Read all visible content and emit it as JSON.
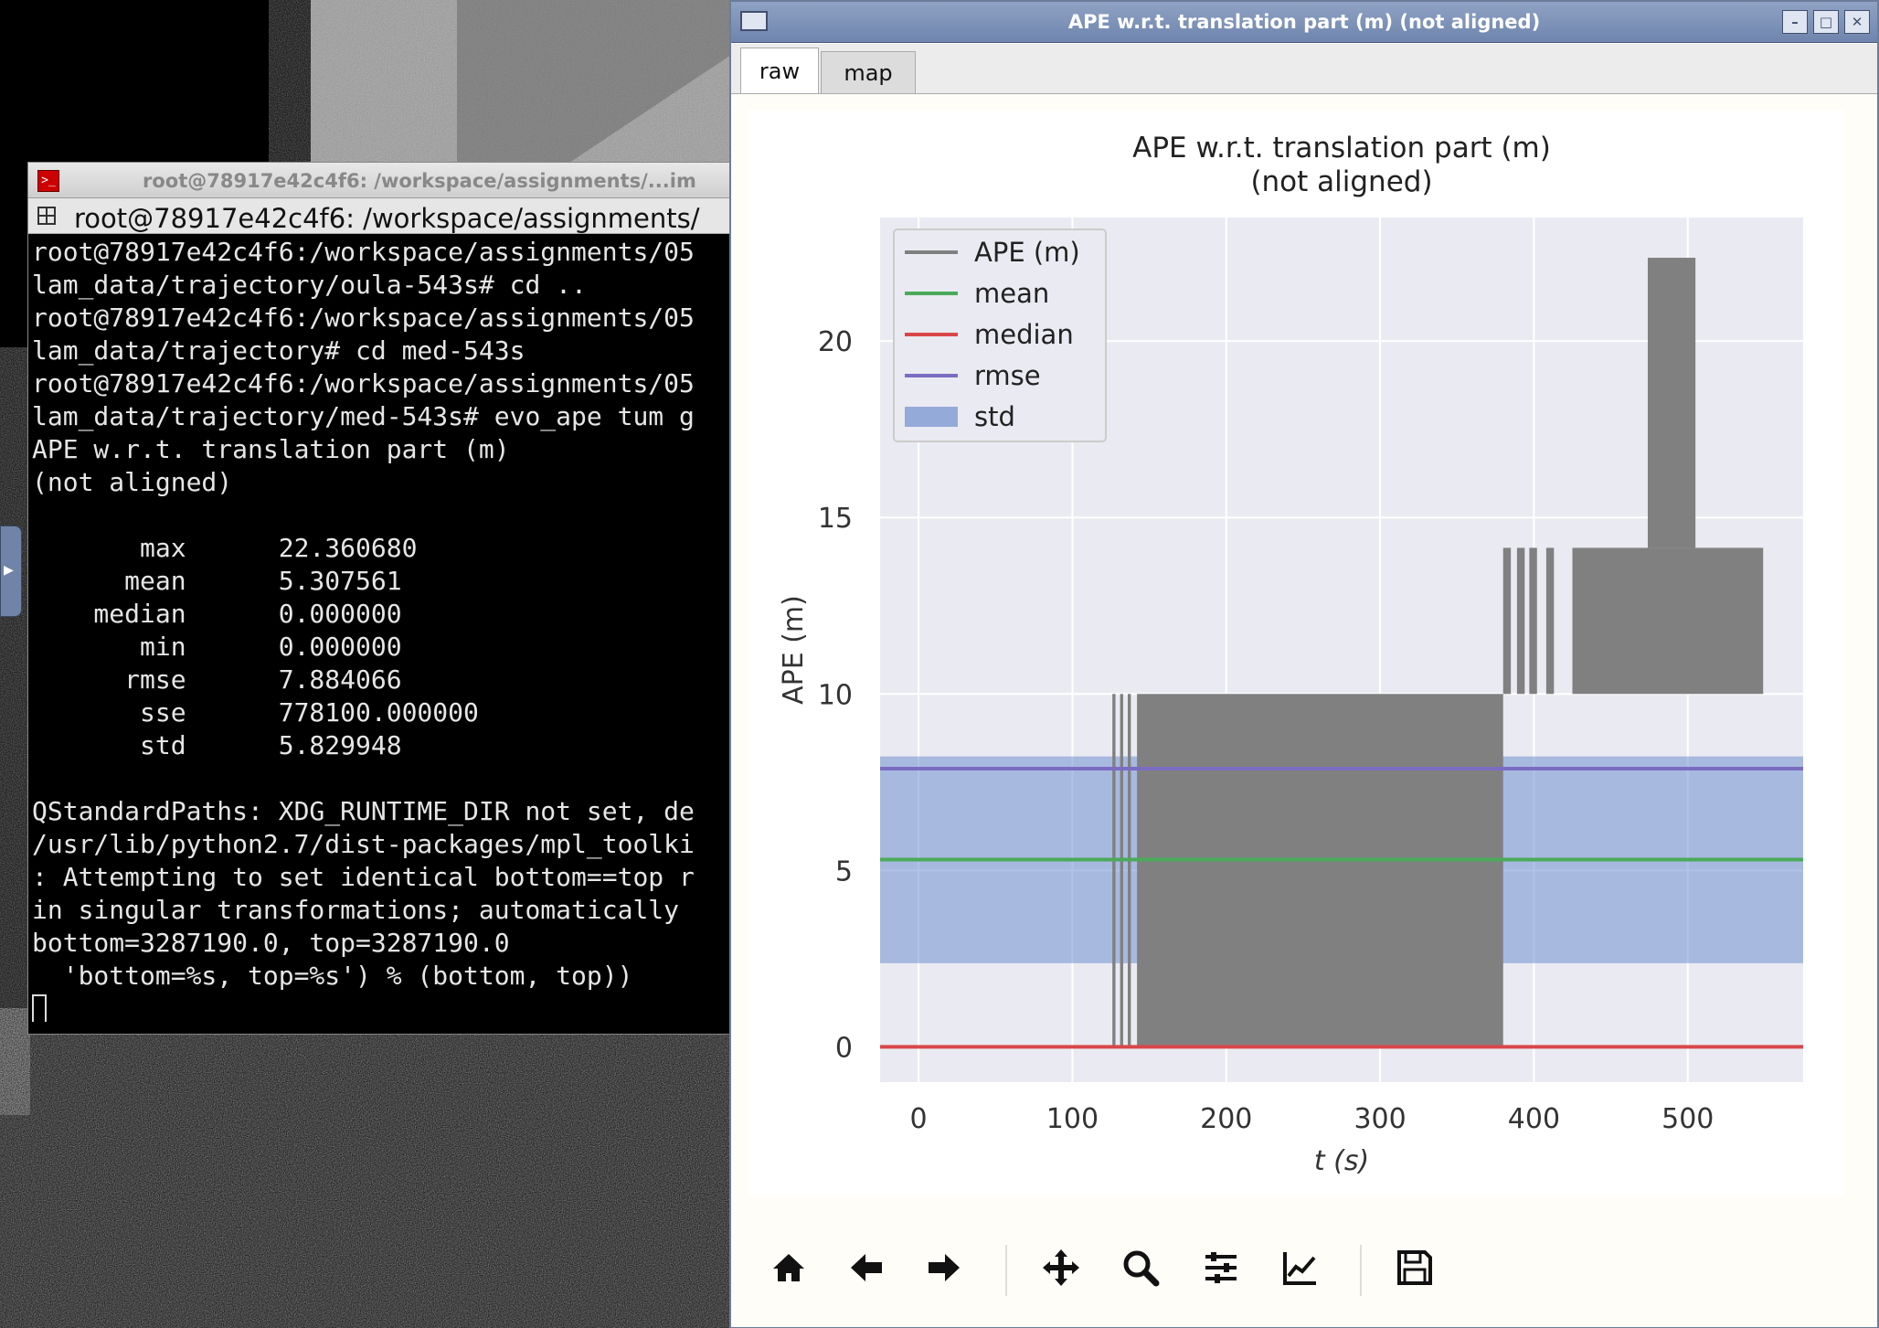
{
  "terminal": {
    "title": "root@78917e42c4f6: /workspace/assignments/...im",
    "tab_label": "root@78917e42c4f6: /workspace/assignments/",
    "lines": [
      "root@78917e42c4f6:/workspace/assignments/05",
      "lam_data/trajectory/oula-543s# cd ..",
      "root@78917e42c4f6:/workspace/assignments/05",
      "lam_data/trajectory# cd med-543s",
      "root@78917e42c4f6:/workspace/assignments/05",
      "lam_data/trajectory/med-543s# evo_ape tum g",
      "APE w.r.t. translation part (m)",
      "(not aligned)",
      "",
      "       max      22.360680",
      "      mean      5.307561",
      "    median      0.000000",
      "       min      0.000000",
      "      rmse      7.884066",
      "       sse      778100.000000",
      "       std      5.829948",
      "",
      "QStandardPaths: XDG_RUNTIME_DIR not set, de",
      "/usr/lib/python2.7/dist-packages/mpl_toolki",
      ": Attempting to set identical bottom==top r",
      "in singular transformations; automatically ",
      "bottom=3287190.0, top=3287190.0",
      "  'bottom=%s, top=%s') % (bottom, top))"
    ]
  },
  "plot_window": {
    "title": "APE w.r.t. translation part (m) (not aligned)",
    "tabs": [
      "raw",
      "map"
    ],
    "active_tab": "raw",
    "toolbar_icons": [
      "home-icon",
      "back-arrow-icon",
      "forward-arrow-icon",
      "pan-icon",
      "zoom-icon",
      "subplots-config-icon",
      "edit-axes-icon",
      "save-icon"
    ]
  },
  "chart_data": {
    "type": "line",
    "title": "APE w.r.t. translation part (m)\n(not aligned)",
    "title_lines": [
      "APE w.r.t. translation part (m)",
      "(not aligned)"
    ],
    "xlabel": "t (s)",
    "ylabel": "APE (m)",
    "xlim": [
      -25,
      575
    ],
    "ylim": [
      -1,
      23.5
    ],
    "xticks": [
      0,
      100,
      200,
      300,
      400,
      500
    ],
    "yticks": [
      0,
      5,
      10,
      15,
      20
    ],
    "grid": true,
    "legend_position": "top-left",
    "colors": {
      "ape": "#808080",
      "mean": "#4aaa5a",
      "median": "#d9474a",
      "rmse": "#7b6cc2",
      "std": "#6f8fcf",
      "background": "#eaeaf2"
    },
    "legend": [
      "APE (m)",
      "mean",
      "median",
      "rmse",
      "std"
    ],
    "stats": {
      "mean": 5.307561,
      "median": 0.0,
      "rmse": 7.884066,
      "std": 5.829948,
      "max": 22.36068
    },
    "std_band": [
      2.37,
      8.23
    ],
    "ape_blocks": [
      {
        "x0": 126,
        "x1": 128,
        "low": 0,
        "high": 10
      },
      {
        "x0": 131,
        "x1": 133,
        "low": 0,
        "high": 10
      },
      {
        "x0": 136,
        "x1": 138,
        "low": 0,
        "high": 10
      },
      {
        "x0": 142,
        "x1": 380,
        "low": 0,
        "high": 10
      },
      {
        "x0": 380,
        "x1": 385,
        "low": 10,
        "high": 14.14
      },
      {
        "x0": 389,
        "x1": 394,
        "low": 10,
        "high": 14.14
      },
      {
        "x0": 397,
        "x1": 402,
        "low": 10,
        "high": 14.14
      },
      {
        "x0": 408,
        "x1": 413,
        "low": 10,
        "high": 14.14
      },
      {
        "x0": 425,
        "x1": 549,
        "low": 10,
        "high": 14.14
      },
      {
        "x0": 474,
        "x1": 505,
        "low": 14.14,
        "high": 22.36
      }
    ]
  }
}
